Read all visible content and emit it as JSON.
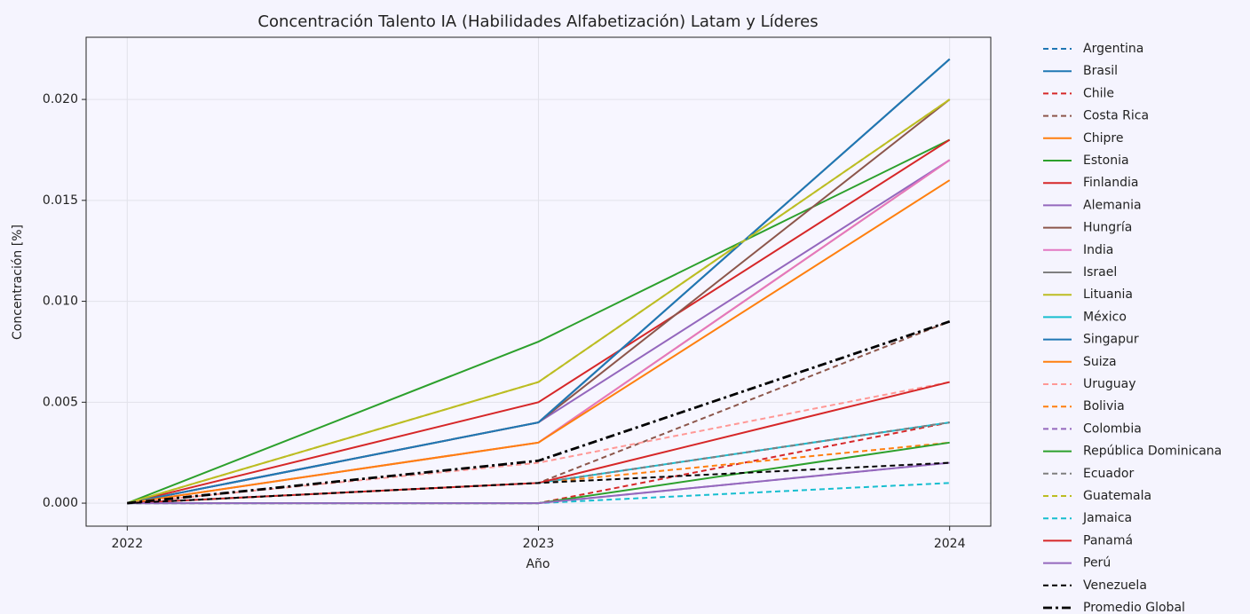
{
  "chart_data": {
    "type": "line",
    "title": "Concentración Talento IA (Habilidades Alfabetización) Latam y Líderes",
    "xlabel": "Año",
    "ylabel": "Concentración [%]",
    "x": [
      2022,
      2023,
      2024
    ],
    "xlim": [
      2021.9,
      2024.1
    ],
    "xticks": [
      2022,
      2023,
      2024
    ],
    "ylim": [
      -0.00114,
      0.02308
    ],
    "yticks": [
      {
        "value": 0,
        "label": "0.000"
      },
      {
        "value": 0.005,
        "label": "0.005"
      },
      {
        "value": 0.01,
        "label": "0.010"
      },
      {
        "value": 0.015,
        "label": "0.015"
      },
      {
        "value": 0.02,
        "label": "0.020"
      }
    ],
    "grid": true,
    "legend": "outside right",
    "series": [
      {
        "name": "Argentina",
        "color": "#1f77b4",
        "dash": "dashed",
        "values": [
          0,
          0.001,
          0.004
        ]
      },
      {
        "name": "Brasil",
        "color": "#1f77b4",
        "dash": "solid",
        "values": [
          0,
          0.004,
          0.022
        ]
      },
      {
        "name": "Chile",
        "color": "#d62728",
        "dash": "dashed",
        "values": [
          0,
          0,
          0.004
        ]
      },
      {
        "name": "Costa Rica",
        "color": "#8c564b",
        "dash": "dashed",
        "values": [
          0,
          0.001,
          0.009
        ]
      },
      {
        "name": "Chipre",
        "color": "#ff7f0e",
        "dash": "solid",
        "values": [
          0,
          0.003,
          0.017
        ]
      },
      {
        "name": "Estonia",
        "color": "#2ca02c",
        "dash": "solid",
        "values": [
          0,
          0.008,
          0.018
        ]
      },
      {
        "name": "Finlandia",
        "color": "#d62728",
        "dash": "solid",
        "values": [
          0,
          0.005,
          0.018
        ]
      },
      {
        "name": "Alemania",
        "color": "#9467bd",
        "dash": "solid",
        "values": [
          0,
          0.004,
          0.017
        ]
      },
      {
        "name": "Hungría",
        "color": "#8c564b",
        "dash": "solid",
        "values": [
          0,
          0.004,
          0.02
        ]
      },
      {
        "name": "India",
        "color": "#e377c2",
        "dash": "solid",
        "values": [
          0,
          0.003,
          0.017
        ]
      },
      {
        "name": "Israel",
        "color": "#7f7f7f",
        "dash": "solid",
        "values": [
          0,
          0.004,
          0.022
        ]
      },
      {
        "name": "Lituania",
        "color": "#bcbd22",
        "dash": "solid",
        "values": [
          0,
          0.006,
          0.02
        ]
      },
      {
        "name": "México",
        "color": "#17becf",
        "dash": "solid",
        "values": [
          0,
          0.001,
          0.004
        ]
      },
      {
        "name": "Singapur",
        "color": "#1f77b4",
        "dash": "solid",
        "values": [
          0,
          0.004,
          0.022
        ]
      },
      {
        "name": "Suiza",
        "color": "#ff7f0e",
        "dash": "solid",
        "values": [
          0,
          0.003,
          0.016
        ]
      },
      {
        "name": "Uruguay",
        "color": "#ff9896",
        "dash": "dashed",
        "values": [
          0,
          0.002,
          0.006
        ]
      },
      {
        "name": "Bolivia",
        "color": "#ff7f0e",
        "dash": "dashed",
        "values": [
          0,
          0.001,
          0.003
        ]
      },
      {
        "name": "Colombia",
        "color": "#9467bd",
        "dash": "dashed",
        "values": [
          0,
          0,
          0.002
        ]
      },
      {
        "name": "República Dominicana",
        "color": "#2ca02c",
        "dash": "solid",
        "values": [
          0,
          0,
          0.003
        ]
      },
      {
        "name": "Ecuador",
        "color": "#7f7f7f",
        "dash": "dashed",
        "values": [
          0,
          0.001,
          0.004
        ]
      },
      {
        "name": "Guatemala",
        "color": "#bcbd22",
        "dash": "dashed",
        "values": [
          0,
          0.006,
          0.02
        ]
      },
      {
        "name": "Jamaica",
        "color": "#17becf",
        "dash": "dashed",
        "values": [
          0,
          0,
          0.001
        ]
      },
      {
        "name": "Panamá",
        "color": "#d62728",
        "dash": "solid",
        "values": [
          0,
          0.001,
          0.006
        ]
      },
      {
        "name": "Perú",
        "color": "#9467bd",
        "dash": "solid",
        "values": [
          0,
          0,
          0.002
        ]
      },
      {
        "name": "Venezuela",
        "color": "#000000",
        "dash": "dashed",
        "values": [
          0,
          0.001,
          0.002
        ]
      },
      {
        "name": "Promedio Global",
        "color": "#000000",
        "dash": "dashdot",
        "values": [
          0,
          0.0021,
          0.009
        ]
      }
    ]
  }
}
